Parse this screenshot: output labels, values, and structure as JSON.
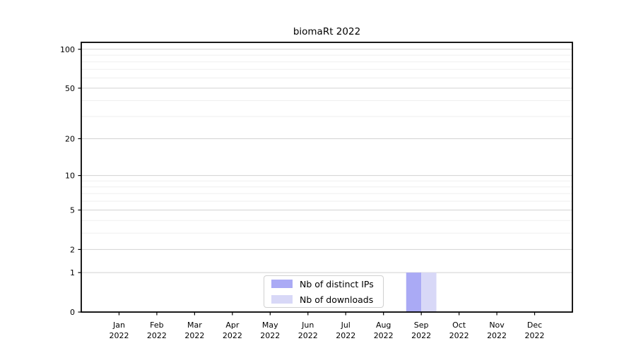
{
  "chart_data": {
    "type": "bar",
    "title": "biomaRt 2022",
    "categories": [
      "Jan 2022",
      "Feb 2022",
      "Mar 2022",
      "Apr 2022",
      "May 2022",
      "Jun 2022",
      "Jul 2022",
      "Aug 2022",
      "Sep 2022",
      "Oct 2022",
      "Nov 2022",
      "Dec 2022"
    ],
    "series": [
      {
        "name": "Nb of distinct IPs",
        "color": "#aaaaf5",
        "values": [
          0,
          0,
          0,
          0,
          0,
          0,
          0,
          0,
          1,
          0,
          0,
          0
        ]
      },
      {
        "name": "Nb of downloads",
        "color": "#d8d8f7",
        "values": [
          0,
          0,
          0,
          0,
          0,
          0,
          0,
          0,
          1,
          0,
          0,
          0
        ]
      }
    ],
    "xlabel": "",
    "ylabel": "",
    "yscale": "log1p",
    "ylim": [
      0,
      113
    ],
    "y_ticks": [
      0,
      1,
      2,
      5,
      10,
      20,
      50,
      100
    ],
    "y_minor_ticks": [
      3,
      4,
      6,
      7,
      8,
      9,
      30,
      40,
      60,
      70,
      80,
      90
    ],
    "grid": "horizontal-major-and-minor",
    "legend_position": "inside-bottom-center",
    "colors": {
      "background": "#ffffff",
      "grid_major": "#d2d2d2",
      "grid_minor": "#efefef",
      "spine": "#000000",
      "text": "#000000"
    }
  }
}
